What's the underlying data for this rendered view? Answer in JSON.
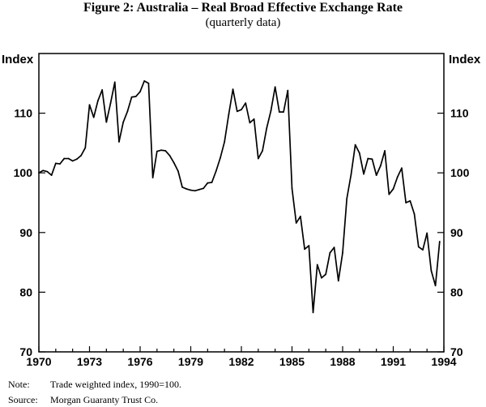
{
  "figure": {
    "title": "Figure 2: Australia – Real Broad Effective Exchange Rate",
    "subtitle": "(quarterly data)"
  },
  "notes": {
    "note_label": "Note:",
    "note_text": "Trade weighted index, 1990=100.",
    "source_label": "Source:",
    "source_text": "Morgan Guaranty Trust Co."
  },
  "chart_data": {
    "type": "line",
    "title": "Figure 2: Australia – Real Broad Effective Exchange Rate",
    "subtitle": "(quarterly data)",
    "ylabel_left": "Index",
    "ylabel_right": "Index",
    "xlabel": "",
    "xlim": [
      1970,
      1994
    ],
    "ylim": [
      70,
      120
    ],
    "x_ticks": [
      1970,
      1973,
      1976,
      1979,
      1982,
      1985,
      1988,
      1991,
      1994
    ],
    "y_ticks": [
      70,
      80,
      90,
      100,
      110
    ],
    "grid": false,
    "legend": "none",
    "line_color": "#000000",
    "series": [
      {
        "x": [
          1970.0,
          1970.25,
          1970.5,
          1970.75,
          1971.0,
          1971.25,
          1971.5,
          1971.75,
          1972.0,
          1972.25,
          1972.5,
          1972.75,
          1973.0,
          1973.25,
          1973.5,
          1973.75,
          1974.0,
          1974.25,
          1974.5,
          1974.75,
          1975.0,
          1975.25,
          1975.5,
          1975.75,
          1976.0,
          1976.25,
          1976.5,
          1976.75,
          1977.0,
          1977.25,
          1977.5,
          1977.75,
          1978.0,
          1978.25,
          1978.5,
          1978.75,
          1979.0,
          1979.25,
          1979.5,
          1979.75,
          1980.0,
          1980.25,
          1980.5,
          1980.75,
          1981.0,
          1981.25,
          1981.5,
          1981.75,
          1982.0,
          1982.25,
          1982.5,
          1982.75,
          1983.0,
          1983.25,
          1983.5,
          1983.75,
          1984.0,
          1984.25,
          1984.5,
          1984.75,
          1985.0,
          1985.25,
          1985.5,
          1985.75,
          1986.0,
          1986.25,
          1986.5,
          1986.75,
          1987.0,
          1987.25,
          1987.5,
          1987.75,
          1988.0,
          1988.25,
          1988.5,
          1988.75,
          1989.0,
          1989.25,
          1989.5,
          1989.75,
          1990.0,
          1990.25,
          1990.5,
          1990.75,
          1991.0,
          1991.25,
          1991.5,
          1991.75,
          1992.0,
          1992.25,
          1992.5,
          1992.75,
          1993.0,
          1993.25,
          1993.5,
          1993.75
        ],
        "values": [
          100.0,
          100.4,
          100.2,
          99.6,
          101.6,
          101.5,
          102.4,
          102.4,
          102.0,
          102.3,
          102.9,
          104.2,
          111.4,
          109.3,
          112.1,
          113.9,
          108.5,
          111.7,
          115.2,
          105.2,
          108.5,
          110.3,
          112.7,
          112.8,
          113.6,
          115.4,
          115.0,
          99.2,
          103.6,
          103.8,
          103.7,
          102.9,
          101.7,
          100.3,
          97.6,
          97.3,
          97.1,
          97.0,
          97.2,
          97.4,
          98.3,
          98.4,
          100.3,
          102.5,
          105.2,
          109.8,
          114.0,
          110.3,
          110.6,
          111.7,
          108.4,
          109.0,
          102.4,
          103.7,
          107.5,
          110.4,
          114.4,
          110.2,
          110.2,
          113.8,
          97.4,
          91.6,
          92.7,
          87.2,
          87.8,
          76.6,
          84.6,
          82.4,
          83.0,
          86.6,
          87.5,
          81.9,
          86.6,
          95.7,
          99.7,
          104.7,
          103.3,
          99.8,
          102.4,
          102.3,
          99.6,
          101.2,
          103.7,
          96.4,
          97.3,
          99.3,
          100.8,
          95.0,
          95.3,
          93.1,
          87.6,
          87.1,
          89.9,
          83.6,
          81.1,
          88.5
        ]
      }
    ]
  }
}
